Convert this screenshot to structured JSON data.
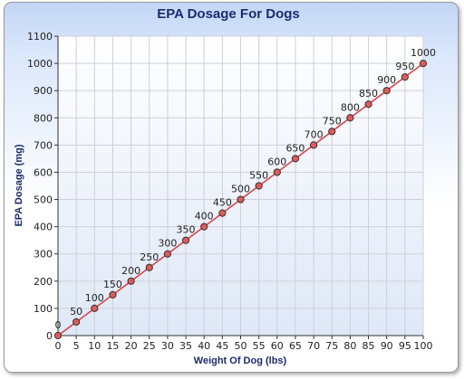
{
  "chart_data": {
    "type": "line",
    "title": "EPA Dosage For Dogs",
    "xlabel": "Weight Of Dog (lbs)",
    "ylabel": "EPA Dosage (mg)",
    "xlim": [
      0,
      100
    ],
    "ylim": [
      0,
      1100
    ],
    "x_ticks": [
      0,
      5,
      10,
      15,
      20,
      25,
      30,
      35,
      40,
      45,
      50,
      55,
      60,
      65,
      70,
      75,
      80,
      85,
      90,
      95,
      100
    ],
    "y_ticks": [
      0,
      100,
      200,
      300,
      400,
      500,
      600,
      700,
      800,
      900,
      1000,
      1100
    ],
    "grid": true,
    "legend": "none",
    "series": [
      {
        "x": [
          0,
          5,
          10,
          15,
          20,
          25,
          30,
          35,
          40,
          45,
          50,
          55,
          60,
          65,
          70,
          75,
          80,
          85,
          90,
          95,
          100
        ],
        "y": [
          0,
          50,
          100,
          150,
          200,
          250,
          300,
          350,
          400,
          450,
          500,
          550,
          600,
          650,
          700,
          750,
          800,
          850,
          900,
          950,
          1000
        ],
        "line_color": "#d9454a",
        "marker_color": "#e05a5a"
      }
    ]
  }
}
